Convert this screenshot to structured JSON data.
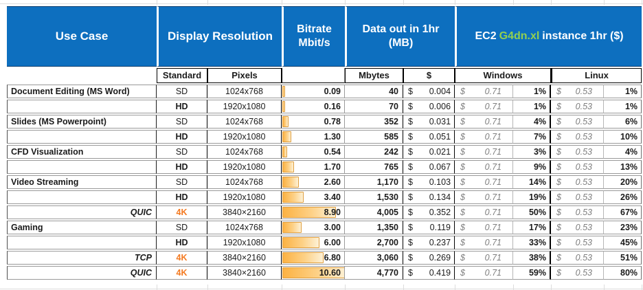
{
  "table": {
    "currency": "$",
    "headers": {
      "use_case": "Use Case",
      "display_resolution": "Display Resolution",
      "bitrate_line1": "Bitrate",
      "bitrate_line2": "Mbit/s",
      "data_out_line1": "Data out in 1hr",
      "data_out_line2": "(MB)",
      "ec2_prefix": "EC2",
      "ec2_instance": "G4dn.xl",
      "ec2_suffix": "instance 1hr ($)"
    },
    "subheaders": {
      "standard": "Standard",
      "pixels": "Pixels",
      "mbytes": "Mbytes",
      "dollar": "$",
      "windows": "Windows",
      "linux": "Linux"
    },
    "bitrate_max": 10.6,
    "rows": [
      {
        "use_case": "Document Editing (MS Word)",
        "protocol": false,
        "standard": "SD",
        "pixels": "1024x768",
        "bitrate": "0.09",
        "bitrate_value": 0.09,
        "mbytes": "40",
        "cost": "0.004",
        "windows_rate": "0.71",
        "windows_pct": "1%",
        "linux_rate": "0.53",
        "linux_pct": "1%"
      },
      {
        "use_case": "",
        "protocol": false,
        "standard": "HD",
        "pixels": "1920x1080",
        "bitrate": "0.16",
        "bitrate_value": 0.16,
        "mbytes": "70",
        "cost": "0.006",
        "windows_rate": "0.71",
        "windows_pct": "1%",
        "linux_rate": "0.53",
        "linux_pct": "1%"
      },
      {
        "use_case": "Slides (MS Powerpoint)",
        "protocol": false,
        "standard": "SD",
        "pixels": "1024x768",
        "bitrate": "0.78",
        "bitrate_value": 0.78,
        "mbytes": "352",
        "cost": "0.031",
        "windows_rate": "0.71",
        "windows_pct": "4%",
        "linux_rate": "0.53",
        "linux_pct": "6%"
      },
      {
        "use_case": "",
        "protocol": false,
        "standard": "HD",
        "pixels": "1920x1080",
        "bitrate": "1.30",
        "bitrate_value": 1.3,
        "mbytes": "585",
        "cost": "0.051",
        "windows_rate": "0.71",
        "windows_pct": "7%",
        "linux_rate": "0.53",
        "linux_pct": "10%"
      },
      {
        "use_case": "CFD Visualization",
        "protocol": false,
        "standard": "SD",
        "pixels": "1024x768",
        "bitrate": "0.54",
        "bitrate_value": 0.54,
        "mbytes": "242",
        "cost": "0.021",
        "windows_rate": "0.71",
        "windows_pct": "3%",
        "linux_rate": "0.53",
        "linux_pct": "4%"
      },
      {
        "use_case": "",
        "protocol": false,
        "standard": "HD",
        "pixels": "1920x1080",
        "bitrate": "1.70",
        "bitrate_value": 1.7,
        "mbytes": "765",
        "cost": "0.067",
        "windows_rate": "0.71",
        "windows_pct": "9%",
        "linux_rate": "0.53",
        "linux_pct": "13%"
      },
      {
        "use_case": "Video Streaming",
        "protocol": false,
        "standard": "SD",
        "pixels": "1024x768",
        "bitrate": "2.60",
        "bitrate_value": 2.6,
        "mbytes": "1,170",
        "cost": "0.103",
        "windows_rate": "0.71",
        "windows_pct": "14%",
        "linux_rate": "0.53",
        "linux_pct": "20%"
      },
      {
        "use_case": "",
        "protocol": false,
        "standard": "HD",
        "pixels": "1920x1080",
        "bitrate": "3.40",
        "bitrate_value": 3.4,
        "mbytes": "1,530",
        "cost": "0.134",
        "windows_rate": "0.71",
        "windows_pct": "19%",
        "linux_rate": "0.53",
        "linux_pct": "26%"
      },
      {
        "use_case": "QUIC",
        "protocol": true,
        "standard": "4K",
        "pixels": "3840×2160",
        "bitrate": "8.90",
        "bitrate_value": 8.9,
        "mbytes": "4,005",
        "cost": "0.352",
        "windows_rate": "0.71",
        "windows_pct": "50%",
        "linux_rate": "0.53",
        "linux_pct": "67%"
      },
      {
        "use_case": "Gaming",
        "protocol": false,
        "standard": "SD",
        "pixels": "1024x768",
        "bitrate": "3.00",
        "bitrate_value": 3.0,
        "mbytes": "1,350",
        "cost": "0.119",
        "windows_rate": "0.71",
        "windows_pct": "17%",
        "linux_rate": "0.53",
        "linux_pct": "23%"
      },
      {
        "use_case": "",
        "protocol": false,
        "standard": "HD",
        "pixels": "1920x1080",
        "bitrate": "6.00",
        "bitrate_value": 6.0,
        "mbytes": "2,700",
        "cost": "0.237",
        "windows_rate": "0.71",
        "windows_pct": "33%",
        "linux_rate": "0.53",
        "linux_pct": "45%"
      },
      {
        "use_case": "TCP",
        "protocol": true,
        "standard": "4K",
        "pixels": "3840×2160",
        "bitrate": "6.80",
        "bitrate_value": 6.8,
        "mbytes": "3,060",
        "cost": "0.269",
        "windows_rate": "0.71",
        "windows_pct": "38%",
        "linux_rate": "0.53",
        "linux_pct": "51%"
      },
      {
        "use_case": "QUIC",
        "protocol": true,
        "standard": "4K",
        "pixels": "3840×2160",
        "bitrate": "10.60",
        "bitrate_value": 10.6,
        "mbytes": "4,770",
        "cost": "0.419",
        "windows_rate": "0.71",
        "windows_pct": "59%",
        "linux_rate": "0.53",
        "linux_pct": "80%"
      }
    ],
    "colors": {
      "header_blue": "#0d6fbf",
      "instance_green": "#92d050",
      "fourk_orange": "#f4791f",
      "row_shade": "#d9e1f2",
      "databar_orange": "#fcb243",
      "muted_gray": "#7f7f7f"
    }
  }
}
